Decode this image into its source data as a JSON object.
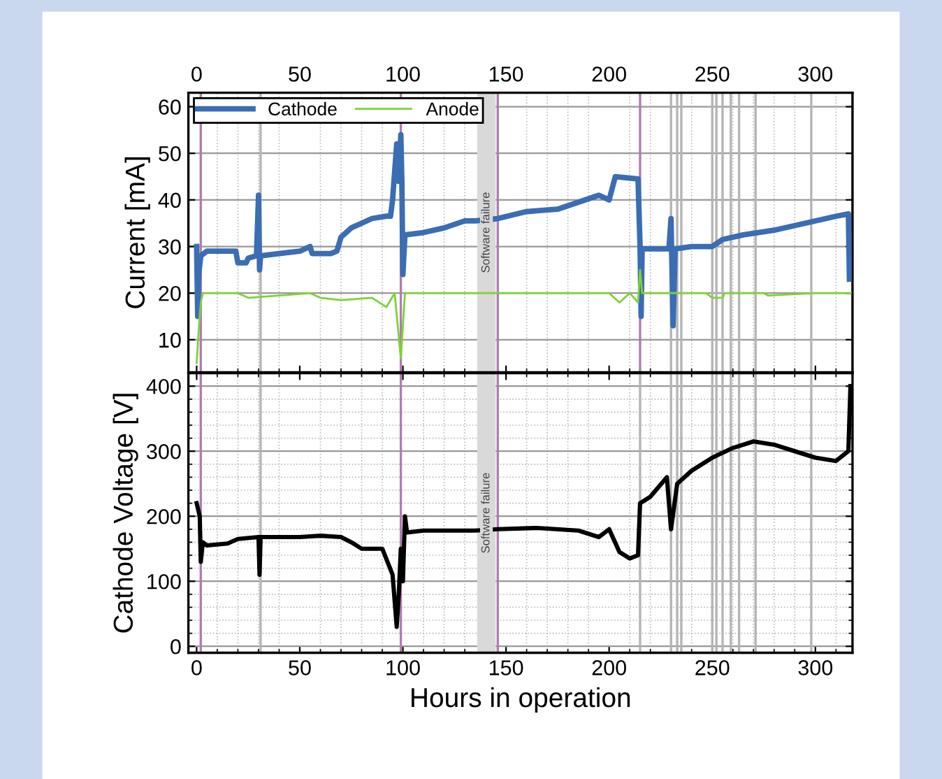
{
  "chart_data": [
    {
      "type": "line",
      "ylabel": "Current [mA]",
      "xlim": [
        -4,
        318
      ],
      "ylim": [
        3,
        63
      ],
      "yticks": [
        10,
        20,
        30,
        40,
        50,
        60
      ],
      "x2lim": [
        -4,
        318
      ],
      "x2ticks": [
        0,
        50,
        100,
        150,
        200,
        250,
        300
      ],
      "tick_labels": "y",
      "grid": true,
      "legend": "top left",
      "line_style": "solid",
      "series": [
        {
          "name": "Cathode",
          "color": "#3a6db3",
          "x": [
            0,
            0.5,
            1,
            2,
            5,
            10,
            19,
            20,
            24,
            25,
            29,
            30,
            30.5,
            31,
            40,
            50,
            55,
            56,
            58,
            65,
            68,
            70,
            75,
            80,
            85,
            92,
            94,
            95,
            97,
            98,
            99,
            99.5,
            100,
            101,
            110,
            120,
            130,
            135,
            146,
            160,
            175,
            185,
            195,
            200,
            203,
            214,
            215,
            215.5,
            216,
            220,
            229,
            230,
            231,
            232,
            240,
            250,
            255,
            265,
            280,
            295,
            310,
            316,
            316.5
          ],
          "values": [
            30,
            15,
            24,
            28,
            29,
            29,
            29,
            26.5,
            26.5,
            27.5,
            28,
            41,
            25,
            28,
            28.5,
            29,
            30,
            28.5,
            28.5,
            28.5,
            29,
            32,
            34,
            35,
            36,
            36.5,
            36.5,
            40,
            52,
            44,
            54,
            44,
            24,
            32.5,
            33,
            34,
            35.5,
            35.5,
            36,
            37.5,
            38,
            39.5,
            41,
            40,
            45,
            44.5,
            30,
            15,
            29.5,
            29.5,
            29.5,
            36,
            13,
            29.5,
            30,
            30,
            31.5,
            32.5,
            33.5,
            35,
            36.5,
            37,
            23
          ]
        },
        {
          "name": "Anode",
          "color": "#7fd13b",
          "x": [
            0,
            1,
            2,
            3,
            20,
            25,
            40,
            55,
            60,
            70,
            85,
            92,
            96,
            99,
            101,
            150,
            200,
            205,
            210,
            214,
            215,
            216,
            247,
            250,
            255,
            256,
            275,
            277,
            300,
            318
          ],
          "values": [
            5,
            12,
            18,
            20,
            20,
            19,
            19.5,
            20,
            19,
            18.5,
            19,
            17,
            20,
            6,
            20,
            20,
            20,
            18,
            20,
            18,
            25,
            20,
            20,
            19,
            19,
            20,
            20,
            19.5,
            20,
            20
          ]
        }
      ],
      "ref_lines": [
        {
          "axis": "x",
          "value": 2,
          "color": "#b07cb0"
        },
        {
          "axis": "x",
          "value": 99,
          "color": "#b07cb0"
        },
        {
          "axis": "x",
          "value": 146,
          "color": "#b07cb0"
        },
        {
          "axis": "x",
          "value": 215,
          "color": "#b07cb0"
        },
        {
          "axis": "x",
          "value": 31,
          "color": "#b4b4b4"
        },
        {
          "axis": "x",
          "value": 230,
          "color": "#b4b4b4"
        },
        {
          "axis": "x",
          "value": 233,
          "color": "#b4b4b4"
        },
        {
          "axis": "x",
          "value": 235,
          "color": "#b4b4b4"
        },
        {
          "axis": "x",
          "value": 250,
          "color": "#b4b4b4"
        },
        {
          "axis": "x",
          "value": 252,
          "color": "#b4b4b4"
        },
        {
          "axis": "x",
          "value": 255,
          "color": "#b4b4b4"
        },
        {
          "axis": "x",
          "value": 259,
          "color": "#b4b4b4"
        },
        {
          "axis": "x",
          "value": 263,
          "color": "#b4b4b4"
        },
        {
          "axis": "x",
          "value": 271,
          "color": "#b4b4b4"
        },
        {
          "axis": "x",
          "value": 298,
          "color": "#b4b4b4"
        }
      ],
      "bands": [
        {
          "axis": "x",
          "from": 136,
          "to": 145,
          "label": "Software failure",
          "color": "#d9d9d9"
        }
      ]
    },
    {
      "type": "line",
      "ylabel": "Cathode Voltage [V]",
      "xlabel": "Hours in operation",
      "xlim": [
        -4,
        318
      ],
      "ylim": [
        -10,
        420
      ],
      "xticks": [
        0,
        50,
        100,
        150,
        200,
        250,
        300
      ],
      "yticks": [
        0,
        100,
        200,
        300,
        400
      ],
      "grid": true,
      "line_style": "solid",
      "series": [
        {
          "color": "#000000",
          "x": [
            0,
            1.5,
            2,
            3,
            5,
            15,
            20,
            30,
            30.5,
            31,
            50,
            60,
            70,
            75,
            80,
            90,
            95,
            97,
            98,
            99,
            100,
            101,
            102,
            110,
            135,
            146,
            165,
            185,
            195,
            200,
            205,
            210,
            214,
            215,
            220,
            228,
            230,
            233,
            240,
            250,
            260,
            270,
            280,
            290,
            300,
            310,
            316,
            317
          ],
          "values": [
            220,
            200,
            130,
            160,
            155,
            158,
            165,
            168,
            110,
            168,
            168,
            170,
            168,
            160,
            150,
            150,
            110,
            30,
            80,
            150,
            100,
            200,
            175,
            178,
            178,
            180,
            182,
            178,
            168,
            180,
            145,
            135,
            140,
            220,
            230,
            260,
            180,
            250,
            270,
            290,
            305,
            315,
            310,
            300,
            290,
            285,
            300,
            400
          ]
        }
      ],
      "ref_lines": [
        {
          "axis": "x",
          "value": 2,
          "color": "#b07cb0"
        },
        {
          "axis": "x",
          "value": 99,
          "color": "#b07cb0"
        },
        {
          "axis": "x",
          "value": 146,
          "color": "#b07cb0"
        },
        {
          "axis": "x",
          "value": 215,
          "color": "#b4b4b4"
        },
        {
          "axis": "x",
          "value": 31,
          "color": "#b4b4b4"
        },
        {
          "axis": "x",
          "value": 230,
          "color": "#b4b4b4"
        },
        {
          "axis": "x",
          "value": 233,
          "color": "#b4b4b4"
        },
        {
          "axis": "x",
          "value": 235,
          "color": "#b4b4b4"
        },
        {
          "axis": "x",
          "value": 250,
          "color": "#b4b4b4"
        },
        {
          "axis": "x",
          "value": 252,
          "color": "#b4b4b4"
        },
        {
          "axis": "x",
          "value": 255,
          "color": "#b4b4b4"
        },
        {
          "axis": "x",
          "value": 259,
          "color": "#b4b4b4"
        },
        {
          "axis": "x",
          "value": 263,
          "color": "#b4b4b4"
        },
        {
          "axis": "x",
          "value": 271,
          "color": "#b4b4b4"
        },
        {
          "axis": "x",
          "value": 298,
          "color": "#b4b4b4"
        }
      ],
      "bands": [
        {
          "axis": "x",
          "from": 136,
          "to": 145,
          "label": "Software failure",
          "color": "#d9d9d9"
        }
      ]
    }
  ]
}
